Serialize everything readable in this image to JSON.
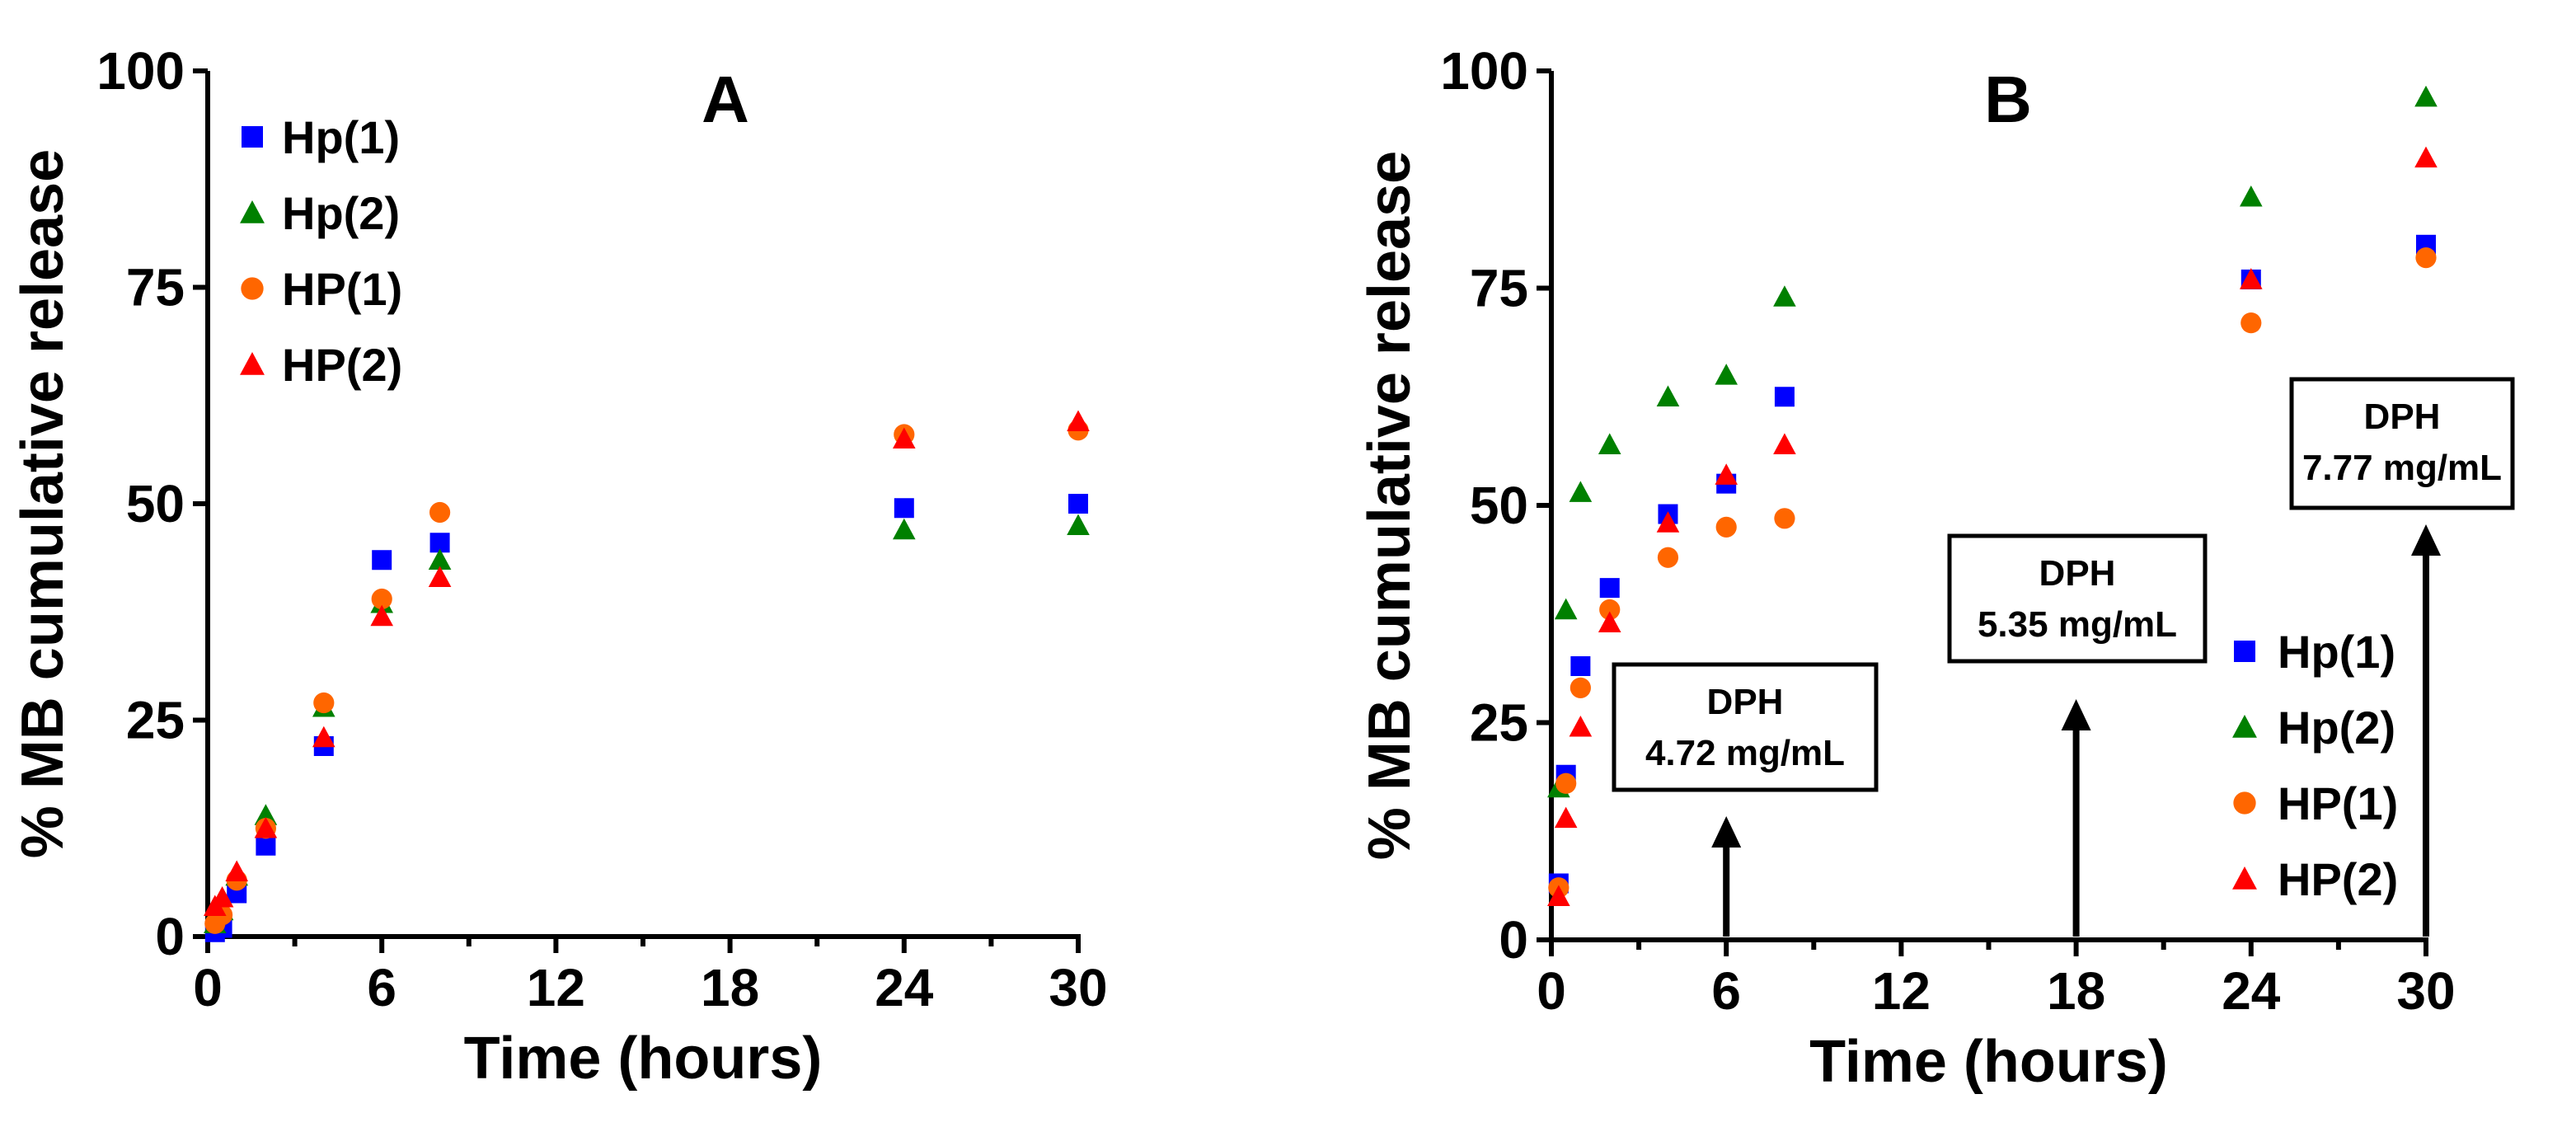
{
  "chart_data": [
    {
      "type": "scatter",
      "title": "A",
      "xlabel": "Time (hours)",
      "ylabel": "% MB cumulative release",
      "xlim": [
        0,
        30
      ],
      "ylim": [
        0,
        100
      ],
      "xticks": [
        0,
        6,
        12,
        18,
        24,
        30
      ],
      "yticks": [
        0,
        25,
        50,
        75,
        100
      ],
      "legend_position": "top-left",
      "series": [
        {
          "name": "Hp(1)",
          "marker": "square",
          "color": "#0000ff",
          "x": [
            0.25,
            0.5,
            1,
            2,
            4,
            6,
            8,
            24,
            30
          ],
          "y": [
            0.5,
            1,
            5,
            10.5,
            22,
            43.5,
            45.5,
            49.5,
            50
          ]
        },
        {
          "name": "Hp(2)",
          "marker": "triangle",
          "color": "#008000",
          "x": [
            0.25,
            0.5,
            1,
            2,
            4,
            6,
            8,
            24,
            30
          ],
          "y": [
            1.5,
            3,
            7,
            14,
            26.5,
            38.5,
            43.5,
            47,
            47.5
          ]
        },
        {
          "name": "HP(1)",
          "marker": "circle",
          "color": "#ff6600",
          "x": [
            0.25,
            0.5,
            1,
            2,
            4,
            6,
            8,
            24,
            30
          ],
          "y": [
            1.5,
            2.5,
            6.5,
            12.5,
            27,
            39,
            49,
            58,
            58.5
          ]
        },
        {
          "name": "HP(2)",
          "marker": "triangle",
          "color": "#ff0000",
          "x": [
            0.25,
            0.5,
            1,
            2,
            4,
            6,
            8,
            24,
            30
          ],
          "y": [
            3.5,
            4.5,
            7.5,
            12.5,
            23,
            37,
            41.5,
            57.5,
            59.5
          ]
        }
      ]
    },
    {
      "type": "scatter",
      "title": "B",
      "xlabel": "Time (hours)",
      "ylabel": "% MB cumulative release",
      "xlim": [
        0,
        30
      ],
      "ylim": [
        0,
        100
      ],
      "xticks": [
        0,
        6,
        12,
        18,
        24,
        30
      ],
      "yticks": [
        0,
        25,
        50,
        75,
        100
      ],
      "legend_position": "bottom-right",
      "series": [
        {
          "name": "Hp(1)",
          "marker": "square",
          "color": "#0000ff",
          "x": [
            0.25,
            0.5,
            1,
            2,
            4,
            6,
            8,
            24,
            30
          ],
          "y": [
            6.5,
            19,
            31.5,
            40.5,
            49,
            52.5,
            62.5,
            76,
            80
          ]
        },
        {
          "name": "Hp(2)",
          "marker": "triangle",
          "color": "#008000",
          "x": [
            0.25,
            0.5,
            1,
            2,
            4,
            6,
            8,
            24,
            30
          ],
          "y": [
            17.5,
            38,
            51.5,
            57,
            62.5,
            65,
            74,
            85.5,
            97
          ]
        },
        {
          "name": "HP(1)",
          "marker": "circle",
          "color": "#ff6600",
          "x": [
            0.25,
            0.5,
            1,
            2,
            4,
            6,
            8,
            24,
            30
          ],
          "y": [
            6,
            18,
            29,
            38,
            44,
            47.5,
            48.5,
            71,
            78.5
          ]
        },
        {
          "name": "HP(2)",
          "marker": "triangle",
          "color": "#ff0000",
          "x": [
            0.25,
            0.5,
            1,
            2,
            4,
            6,
            8,
            24,
            30
          ],
          "y": [
            5,
            14,
            24.5,
            36.5,
            48,
            53.5,
            57,
            76,
            90
          ]
        }
      ],
      "annotations": [
        {
          "label": "DPH",
          "value": "4.72 mg/mL",
          "x": 6
        },
        {
          "label": "DPH",
          "value": "5.35 mg/mL",
          "x": 18
        },
        {
          "label": "DPH",
          "value": "7.77 mg/mL",
          "x": 30
        }
      ]
    }
  ]
}
